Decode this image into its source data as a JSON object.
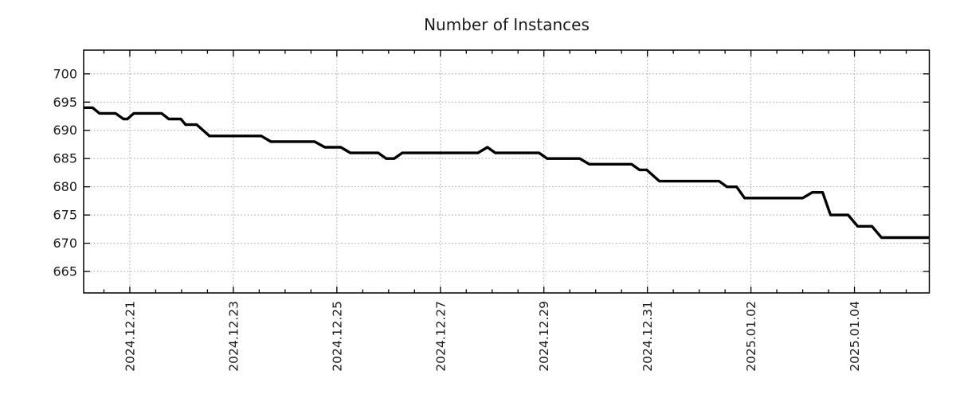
{
  "title": "Number of Instances",
  "colors": {
    "line": "#000000",
    "grid": "#a6a6a6",
    "axis": "#000000",
    "text": "#1a1a1a",
    "background": "#ffffff"
  },
  "chart_data": {
    "type": "line",
    "title": "Number of Instances",
    "style": "stepped time series, black line, dashed gray grid, boxed axes with inward ticks, x tick labels rotated 90°",
    "x_axis": {
      "unit": "days since 2024-12-20 00:00",
      "range": [
        0.108,
        16.446
      ],
      "major_ticks": [
        {
          "t": 1,
          "label": "2024.12.21"
        },
        {
          "t": 3,
          "label": "2024.12.23"
        },
        {
          "t": 5,
          "label": "2024.12.25"
        },
        {
          "t": 7,
          "label": "2024.12.27"
        },
        {
          "t": 9,
          "label": "2024.12.29"
        },
        {
          "t": 11,
          "label": "2024.12.31"
        },
        {
          "t": 13,
          "label": "2025.01.02"
        },
        {
          "t": 15,
          "label": "2025.01.04"
        }
      ],
      "minor_tick_interval": 0.5,
      "grid": true
    },
    "y_axis": {
      "range": [
        661.2,
        704.2
      ],
      "ticks": [
        665,
        670,
        675,
        680,
        685,
        690,
        695,
        700
      ],
      "grid": true
    },
    "legend": "none",
    "series": [
      {
        "name": "instances",
        "color": "#000000",
        "line_width": 3.4,
        "points": [
          [
            0.108,
            694
          ],
          [
            0.28,
            694
          ],
          [
            0.415,
            693
          ],
          [
            0.723,
            693
          ],
          [
            0.877,
            692
          ],
          [
            0.954,
            692
          ],
          [
            1.077,
            693
          ],
          [
            1.615,
            693
          ],
          [
            1.754,
            692
          ],
          [
            1.985,
            692
          ],
          [
            2.077,
            691
          ],
          [
            2.292,
            691
          ],
          [
            2.538,
            689
          ],
          [
            3.538,
            689
          ],
          [
            3.723,
            688
          ],
          [
            4.569,
            688
          ],
          [
            4.769,
            687
          ],
          [
            5.077,
            687
          ],
          [
            5.262,
            686
          ],
          [
            5.8,
            686
          ],
          [
            5.954,
            685
          ],
          [
            6.108,
            685
          ],
          [
            6.262,
            686
          ],
          [
            7.723,
            686
          ],
          [
            7.908,
            687
          ],
          [
            8.062,
            686
          ],
          [
            8.908,
            686
          ],
          [
            9.062,
            685
          ],
          [
            9.692,
            685
          ],
          [
            9.877,
            684
          ],
          [
            10.692,
            684
          ],
          [
            10.846,
            683
          ],
          [
            10.985,
            683
          ],
          [
            11.231,
            681
          ],
          [
            12.385,
            681
          ],
          [
            12.538,
            680
          ],
          [
            12.723,
            680
          ],
          [
            12.877,
            678
          ],
          [
            14.0,
            678
          ],
          [
            14.185,
            679
          ],
          [
            14.385,
            679
          ],
          [
            14.538,
            675
          ],
          [
            14.877,
            675
          ],
          [
            15.062,
            673
          ],
          [
            15.338,
            673
          ],
          [
            15.523,
            671
          ],
          [
            16.446,
            671
          ]
        ]
      }
    ]
  }
}
